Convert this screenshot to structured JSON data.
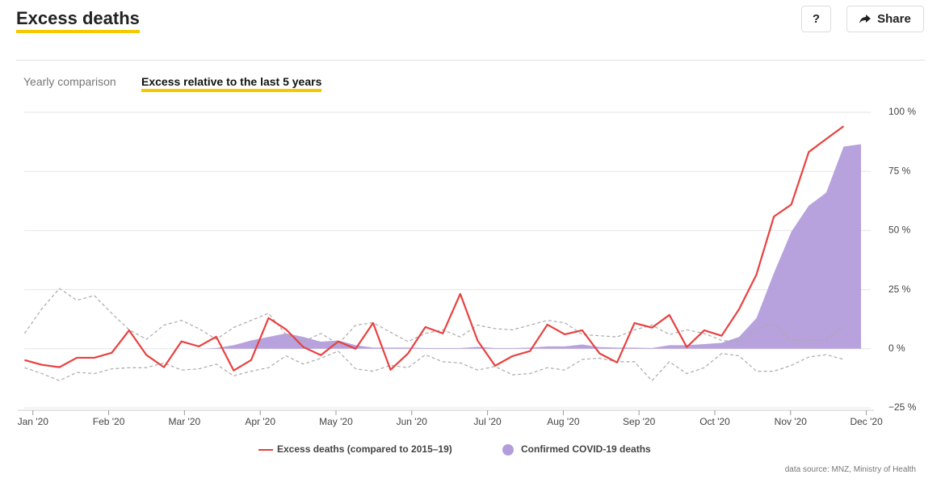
{
  "header": {
    "title": "Excess deaths",
    "help": "?",
    "share": "Share"
  },
  "tabs": [
    "Yearly comparison",
    "Excess relative to the last 5 years"
  ],
  "source": "data source: MNZ, Ministry of Health",
  "chart_data": {
    "type": "line",
    "xlim": [
      -0.2,
      11.1
    ],
    "xticks": [
      {
        "value": 0,
        "label": "Jan '20"
      },
      {
        "value": 1,
        "label": "Feb '20"
      },
      {
        "value": 2,
        "label": "Mar '20"
      },
      {
        "value": 3,
        "label": "Apr '20"
      },
      {
        "value": 4,
        "label": "May '20"
      },
      {
        "value": 5,
        "label": "Jun '20"
      },
      {
        "value": 6,
        "label": "Jul '20"
      },
      {
        "value": 7,
        "label": "Aug '20"
      },
      {
        "value": 8,
        "label": "Sep '20"
      },
      {
        "value": 9,
        "label": "Oct '20"
      },
      {
        "value": 10,
        "label": "Nov '20"
      },
      {
        "value": 11,
        "label": "Dec '20"
      }
    ],
    "ylim": [
      -25,
      100
    ],
    "yticks": [
      {
        "value": -25,
        "label": "−25 %"
      },
      {
        "value": 0,
        "label": "0 %"
      },
      {
        "value": 25,
        "label": "25 %"
      },
      {
        "value": 50,
        "label": "50 %"
      },
      {
        "value": 75,
        "label": "75 %"
      },
      {
        "value": 100,
        "label": "100 %"
      }
    ],
    "grid": true,
    "series": [
      {
        "name": "Confirmed COVID-19 deaths",
        "kind": "area",
        "color": "#b39ddb",
        "x": [
          2.19,
          2.42,
          2.65,
          2.88,
          3.11,
          3.34,
          3.57,
          3.8,
          4.03,
          4.26,
          4.49,
          4.72,
          4.95,
          5.18,
          5.41,
          5.64,
          5.87,
          6.1,
          6.33,
          6.56,
          6.79,
          7.02,
          7.25,
          7.48,
          7.71,
          7.94,
          8.17,
          8.4,
          8.63,
          8.86,
          9.09,
          9.32,
          9.55,
          9.78,
          10.01,
          10.24,
          10.47,
          10.7,
          10.93
        ],
        "values": [
          0,
          0.3,
          1.5,
          3.5,
          5,
          6.5,
          5,
          3,
          3.5,
          1.5,
          0.5,
          0.5,
          0.5,
          0.3,
          0.3,
          0.3,
          0.8,
          0.3,
          0.3,
          0.5,
          1,
          1,
          1.8,
          0.7,
          0.5,
          0.5,
          0.3,
          1.5,
          1.5,
          2,
          2.5,
          5,
          13,
          32,
          49.5,
          60.5,
          66,
          85.5,
          86.5
        ]
      },
      {
        "kind": "dashed",
        "color": "#aaaaaa",
        "x": [
          -0.11,
          0.12,
          0.35,
          0.58,
          0.81,
          1.04,
          1.27,
          1.5,
          1.73,
          1.96,
          2.19,
          2.42,
          2.65,
          2.88,
          3.11,
          3.34,
          3.57,
          3.8,
          4.03,
          4.26,
          4.49,
          4.72,
          4.95,
          5.18,
          5.41,
          5.64,
          5.87,
          6.1,
          6.33,
          6.56,
          6.79,
          7.02,
          7.25,
          7.48,
          7.71,
          7.94,
          8.17,
          8.4,
          8.63,
          8.86,
          9.09,
          9.32,
          9.55,
          9.78,
          10.01,
          10.24,
          10.47,
          10.7
        ],
        "values": [
          6.5,
          17,
          25.5,
          20.5,
          22.5,
          15,
          8,
          4,
          10,
          12,
          8.5,
          4,
          9,
          12,
          15,
          6,
          3,
          6.5,
          2,
          10,
          11,
          7,
          3,
          6.5,
          8,
          5,
          10,
          8.5,
          8,
          10,
          12,
          11,
          6,
          5.5,
          5,
          8,
          10,
          6,
          8,
          6.5,
          3.5,
          3,
          8.5,
          10.5,
          3.5,
          3.5,
          4,
          9.5
        ]
      },
      {
        "kind": "dashed",
        "color": "#aaaaaa",
        "x": [
          -0.11,
          0.12,
          0.35,
          0.58,
          0.81,
          1.04,
          1.27,
          1.5,
          1.73,
          1.96,
          2.19,
          2.42,
          2.65,
          2.88,
          3.11,
          3.34,
          3.57,
          3.8,
          4.03,
          4.26,
          4.49,
          4.72,
          4.95,
          5.18,
          5.41,
          5.64,
          5.87,
          6.1,
          6.33,
          6.56,
          6.79,
          7.02,
          7.25,
          7.48,
          7.71,
          7.94,
          8.17,
          8.4,
          8.63,
          8.86,
          9.09,
          9.32,
          9.55,
          9.78,
          10.01,
          10.24,
          10.47,
          10.7
        ],
        "values": [
          -8,
          -10.5,
          -13.5,
          -10,
          -10.5,
          -8.5,
          -8,
          -8,
          -6,
          -9,
          -8.5,
          -6.5,
          -11.5,
          -9.5,
          -8,
          -3,
          -6.5,
          -4,
          -1,
          -8.5,
          -9.5,
          -7,
          -8,
          -2.5,
          -5.5,
          -6,
          -9,
          -7.5,
          -11,
          -10.5,
          -8,
          -9,
          -4.5,
          -4,
          -5.5,
          -5.5,
          -13.5,
          -5.5,
          -10.5,
          -8,
          -2,
          -3,
          -9.5,
          -9.5,
          -7,
          -3.5,
          -2.5,
          -4.5
        ]
      },
      {
        "name": "Excess deaths (compared to 2015–19)",
        "kind": "line",
        "color": "#e8413f",
        "x": [
          -0.11,
          0.12,
          0.35,
          0.58,
          0.81,
          1.04,
          1.27,
          1.5,
          1.73,
          1.96,
          2.19,
          2.42,
          2.65,
          2.88,
          3.11,
          3.34,
          3.57,
          3.8,
          4.03,
          4.26,
          4.49,
          4.72,
          4.95,
          5.18,
          5.41,
          5.64,
          5.87,
          6.1,
          6.33,
          6.56,
          6.79,
          7.02,
          7.25,
          7.48,
          7.71,
          7.94,
          8.17,
          8.4,
          8.63,
          8.86,
          9.09,
          9.32,
          9.55,
          9.78,
          10.01,
          10.24,
          10.47,
          10.7
        ],
        "values": [
          -4.8,
          -6.8,
          -7.8,
          -3.8,
          -3.8,
          -1.7,
          7.8,
          -2.7,
          -7.8,
          3.1,
          1,
          5.1,
          -9.2,
          -4.8,
          13,
          8.2,
          0.7,
          -2.7,
          3.1,
          0,
          10.9,
          -8.9,
          -2,
          9.2,
          6.5,
          23.2,
          3.4,
          -7.2,
          -3.1,
          -1,
          10.2,
          6.1,
          7.8,
          -2,
          -5.8,
          10.9,
          8.9,
          14.3,
          0.7,
          7.8,
          5.5,
          16.7,
          31.4,
          55.9,
          61,
          83.2,
          88.7,
          94.1
        ]
      }
    ]
  }
}
